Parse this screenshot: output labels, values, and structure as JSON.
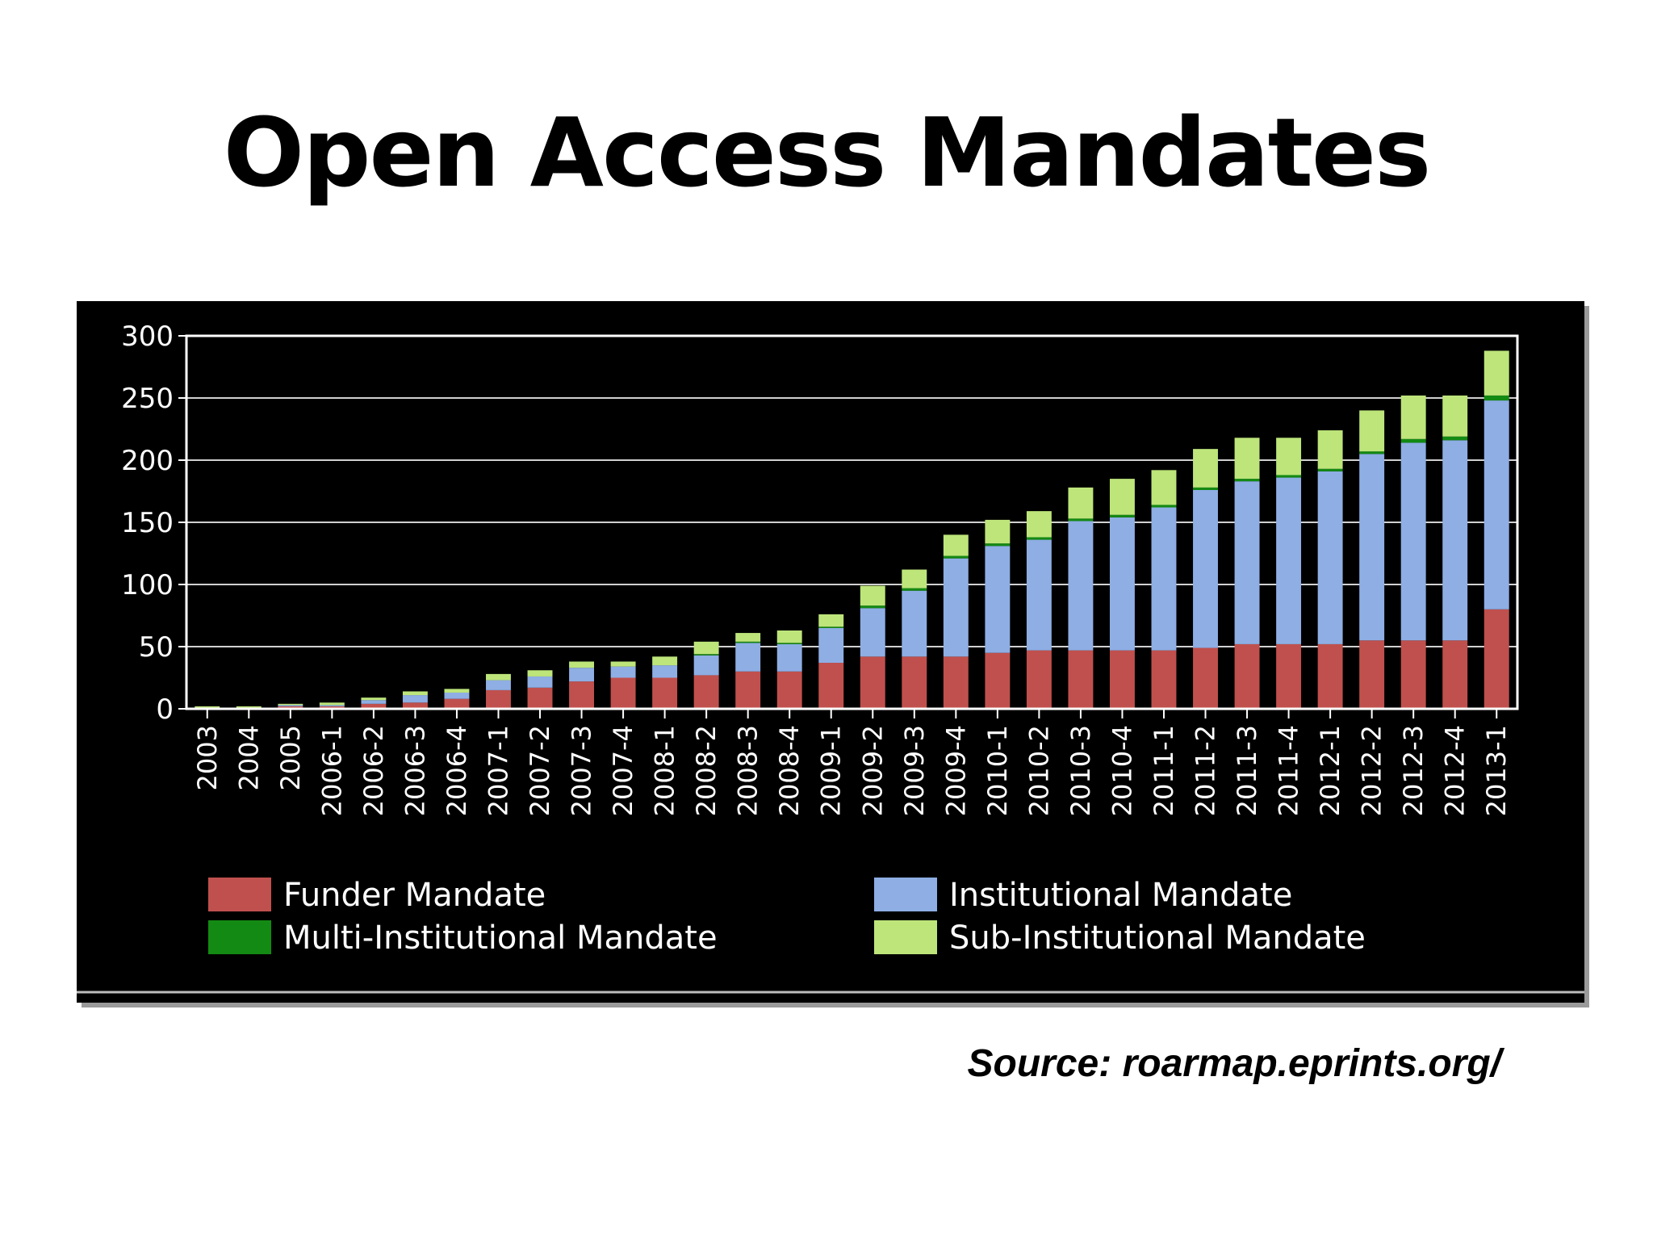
{
  "slide": {
    "title": "Open Access Mandates",
    "source": "Source: roarmap.eprints.org/"
  },
  "chart_data": {
    "type": "bar",
    "stacked": true,
    "title": "",
    "xlabel": "",
    "ylabel": "",
    "ylim": [
      0,
      300
    ],
    "yticks": [
      0,
      50,
      100,
      150,
      200,
      250,
      300
    ],
    "grid": true,
    "legend_position": "bottom",
    "background": "#000000",
    "categories": [
      "2003",
      "2004",
      "2005",
      "2006-1",
      "2006-2",
      "2006-3",
      "2006-4",
      "2007-1",
      "2007-2",
      "2007-3",
      "2007-4",
      "2008-1",
      "2008-2",
      "2008-3",
      "2008-4",
      "2009-1",
      "2009-2",
      "2009-3",
      "2009-4",
      "2010-1",
      "2010-2",
      "2010-3",
      "2010-4",
      "2011-1",
      "2011-2",
      "2011-3",
      "2011-4",
      "2012-1",
      "2012-2",
      "2012-3",
      "2012-4",
      "2013-1"
    ],
    "series": [
      {
        "name": "Funder Mandate",
        "color": "#c0504d",
        "values": [
          1,
          1,
          2,
          2,
          4,
          5,
          8,
          15,
          17,
          22,
          25,
          25,
          27,
          30,
          30,
          37,
          42,
          42,
          42,
          45,
          47,
          47,
          47,
          47,
          49,
          52,
          52,
          52,
          55,
          55,
          55,
          80
        ]
      },
      {
        "name": "Institutional Mandate",
        "color": "#8eaee4",
        "values": [
          0,
          0,
          1,
          1,
          3,
          6,
          5,
          8,
          9,
          11,
          9,
          10,
          16,
          23,
          22,
          28,
          39,
          53,
          79,
          86,
          89,
          104,
          107,
          115,
          127,
          131,
          134,
          139,
          150,
          159,
          161,
          168
        ]
      },
      {
        "name": "Multi-Institutional Mandate",
        "color": "#138a13",
        "values": [
          0,
          0,
          0,
          0,
          0,
          0,
          0,
          0,
          0,
          0,
          0,
          0,
          1,
          1,
          1,
          1,
          2,
          2,
          2,
          2,
          2,
          2,
          2,
          2,
          2,
          2,
          2,
          2,
          2,
          3,
          3,
          4
        ]
      },
      {
        "name": "Sub-Institutional Mandate",
        "color": "#bde57a",
        "values": [
          1,
          1,
          1,
          2,
          2,
          3,
          3,
          5,
          5,
          5,
          4,
          7,
          10,
          7,
          10,
          10,
          16,
          15,
          17,
          19,
          21,
          25,
          29,
          28,
          31,
          33,
          30,
          31,
          33,
          35,
          33,
          36
        ]
      }
    ]
  }
}
